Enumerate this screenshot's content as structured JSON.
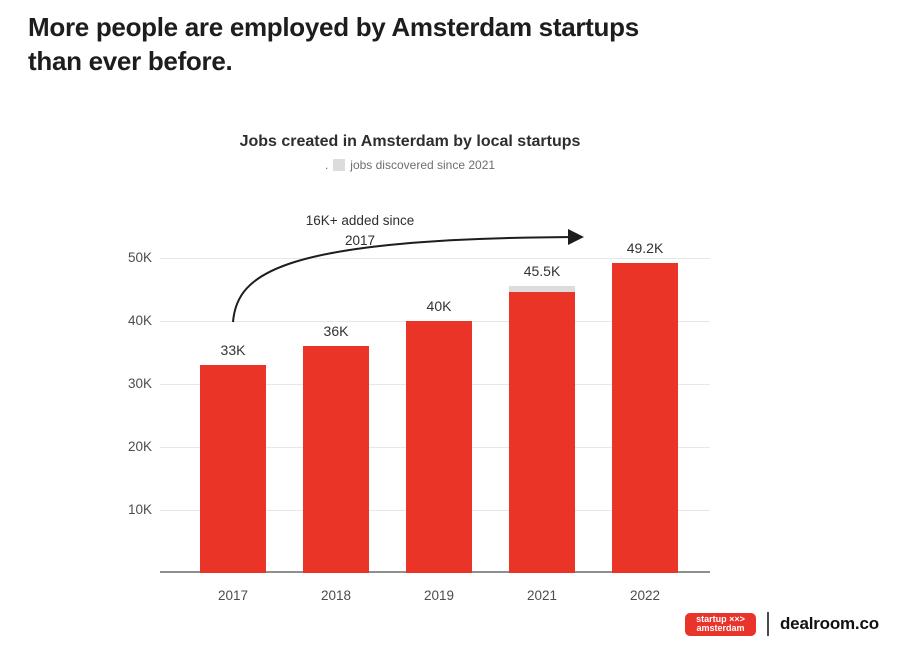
{
  "page": {
    "headline_line1": "More people are employed by Amsterdam startups",
    "headline_line2": "than ever before."
  },
  "chart_data": {
    "type": "bar",
    "title": "Jobs created in Amsterdam by local startups",
    "legend": {
      "prefix": ".",
      "swatch_color": "#dcdcdc",
      "label": "jobs discovered since 2021"
    },
    "categories": [
      "2017",
      "2018",
      "2019",
      "2021",
      "2022"
    ],
    "values_k": [
      33,
      36,
      40,
      45.5,
      49.2
    ],
    "value_labels": [
      "33K",
      "36K",
      "40K",
      "45.5K",
      "49.2K"
    ],
    "y_ticks": [
      {
        "value": 10,
        "label": "10K"
      },
      {
        "value": 20,
        "label": "20K"
      },
      {
        "value": 30,
        "label": "30K"
      },
      {
        "value": 40,
        "label": "40K"
      },
      {
        "value": 50,
        "label": "50K"
      }
    ],
    "ylim": [
      0,
      52
    ],
    "grid": "horizontal",
    "legend_position": "top-center",
    "bar_color": "#ea3428",
    "overlay": {
      "category": "2021",
      "meaning": "jobs discovered since 2021",
      "approx_value_k": 1,
      "color": "#dcdcdc"
    },
    "annotation": {
      "line1": "16K+ added since",
      "line2": "2017"
    }
  },
  "footer": {
    "badge_line1": "startup ××>",
    "badge_line2": "amsterdam",
    "badge_color": "#e8342a",
    "brand": "dealroom.co"
  }
}
